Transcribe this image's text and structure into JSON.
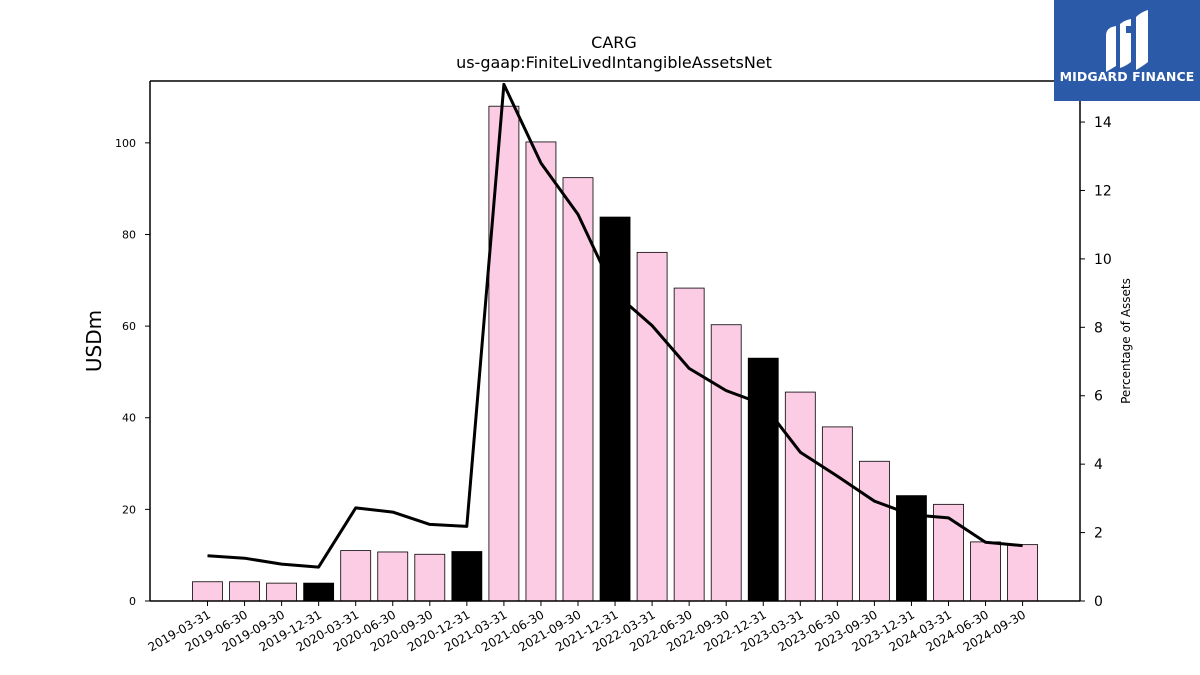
{
  "logo": {
    "text": "MIDGARD FINANCE"
  },
  "colors": {
    "bar_default": "#fccbe4",
    "bar_highlight": "#000000",
    "line": "#000000",
    "logo_bg": "#2b5aa8"
  },
  "chart_data": {
    "type": "bar",
    "title": "CARG",
    "subtitle": "us-gaap:FiniteLivedIntangibleAssetsNet",
    "ylabel": "USDm",
    "y2label": "Percentage of Assets",
    "ylim": [
      0,
      113.5
    ],
    "y2lim": [
      0,
      15.2
    ],
    "yticks": [
      0,
      20,
      40,
      60,
      80,
      100
    ],
    "y2ticks": [
      0,
      2,
      4,
      6,
      8,
      10,
      12,
      14
    ],
    "categories": [
      "2019-03-31",
      "2019-06-30",
      "2019-09-30",
      "2019-12-31",
      "2020-03-31",
      "2020-06-30",
      "2020-09-30",
      "2020-12-31",
      "2021-03-31",
      "2021-06-30",
      "2021-09-30",
      "2021-12-31",
      "2022-03-31",
      "2022-06-30",
      "2022-09-30",
      "2022-12-31",
      "2023-03-31",
      "2023-06-30",
      "2023-09-30",
      "2023-12-31",
      "2024-03-31",
      "2024-06-30",
      "2024-09-30"
    ],
    "values": [
      4.2,
      4.2,
      3.9,
      3.9,
      11.0,
      10.7,
      10.2,
      10.8,
      108.0,
      100.2,
      92.4,
      83.8,
      76.1,
      68.3,
      60.3,
      53.0,
      45.6,
      38.0,
      30.5,
      23.0,
      21.1,
      12.9,
      12.3
    ],
    "highlight": [
      false,
      false,
      false,
      true,
      false,
      false,
      false,
      true,
      false,
      false,
      false,
      true,
      false,
      false,
      false,
      true,
      false,
      false,
      false,
      true,
      false,
      false,
      false
    ],
    "line_series": {
      "axis": "right",
      "values": [
        1.32,
        1.25,
        1.08,
        0.99,
        2.72,
        2.6,
        2.24,
        2.18,
        15.1,
        12.8,
        11.3,
        9.0,
        8.05,
        6.8,
        6.15,
        5.75,
        4.35,
        3.65,
        2.92,
        2.52,
        2.43,
        1.72,
        1.62
      ]
    }
  }
}
